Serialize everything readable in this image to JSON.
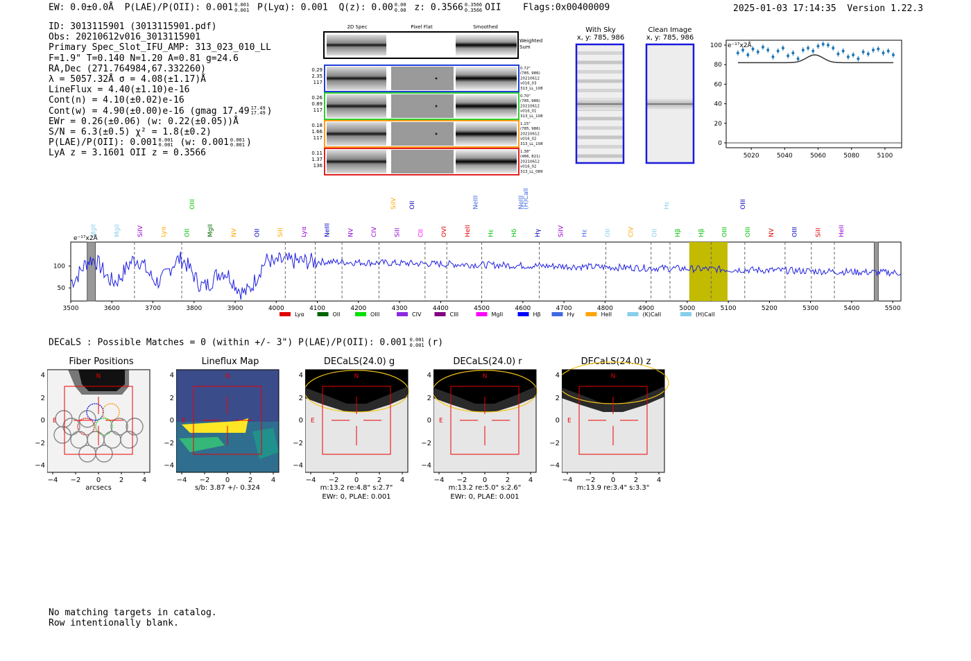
{
  "header": {
    "ew": "EW: 0.0±0.0Å",
    "plae_label": "P(LAE)/P(OII): 0.001",
    "plae_sup": "0.001",
    "plae_sub": "0.001",
    "plya": "P(Lyα): 0.001",
    "qz_label": "Q(z): 0.00",
    "qz_sup": "0.00",
    "qz_sub": "0.00",
    "z_label": "z: 0.3566",
    "z_sup": "0.3566",
    "z_sub": "0.3566",
    "z_line": "OII",
    "flags": "Flags:0x00400009",
    "timestamp": "2025-01-03 17:14:35",
    "version": "Version 1.22.3"
  },
  "info": {
    "id": "ID: 3013115901 (3013115901.pdf)",
    "obs": "Obs: 20210612v016_3013115901",
    "primary": "Primary Spec_Slot_IFU_AMP: 313_023_010_LL",
    "fit": "F=1.9\"  T=0.140  N=1.20  A=0.81  g=24.6",
    "radec": "RA,Dec (271.764984,67.332260)",
    "lambda": "λ = 5057.32Å  σ = 4.08(±1.17)Å",
    "lineflux": "LineFlux = 4.40(±1.10)e-16",
    "contn": "Cont(n) = 4.10(±0.02)e-16",
    "contw": "Cont(w) = 4.90(±0.00)e-16 (gmag 17.49",
    "contw_sup": "17.49",
    "contw_sub": "17.49",
    "contw_end": ")",
    "ewr": "EWr = 0.26(±0.06) (w: 0.22(±0.05))Å",
    "sn": "S/N = 6.3(±0.5)  χ² = 1.8(±0.2)",
    "plae": "P(LAE)/P(OII): 0.001",
    "plae_sup": "0.001",
    "plae_sub": "0.001",
    "plae_w": " (w: 0.001",
    "plae_w_sup": "0.001",
    "plae_w_sub": "0.001",
    "plae_end": ")",
    "lya": "LyA z = 3.1601  OII z = 0.3566"
  },
  "cutouts": {
    "col_2d": "2D Spec",
    "col_flat": "Pixel Flat",
    "col_smooth": "Smoothed",
    "weighted": "Weighted",
    "weighted2": "Sum",
    "rows": [
      {
        "left": [
          "0.29",
          "2.35",
          "117"
        ],
        "right": [
          "0.72\"",
          "(785, 986)",
          "20210612",
          "v016_03",
          "313_LL_108"
        ],
        "color": "#1f3fd6"
      },
      {
        "left": [
          "0.26",
          "0.89",
          "117"
        ],
        "right": [
          "0.70\"",
          "(785, 986)",
          "20210612",
          "v016_01",
          "313_LL_108"
        ],
        "color": "#2ecc2e"
      },
      {
        "left": [
          "0.18",
          "1.66",
          "117"
        ],
        "right": [
          "1.15\"",
          "(785, 986)",
          "20210612",
          "v016_02",
          "313_LL_108"
        ],
        "color": "#ff9a1a"
      },
      {
        "left": [
          "0.11",
          "1.37",
          "136"
        ],
        "right": [
          "1.38\"",
          "(486, 821)",
          "20210612",
          "v016_02",
          "313_LL_089"
        ],
        "color": "#e02020"
      }
    ]
  },
  "sky": {
    "with_sky": "With Sky",
    "with_sky_xy": "x, y: 785, 986",
    "clean": "Clean Image",
    "clean_xy": "x, y: 785, 986"
  },
  "zoom_chart": {
    "ylabel": "e⁻¹⁷x2Å",
    "yticks": [
      "0",
      "20",
      "40",
      "60",
      "80",
      "100"
    ],
    "xticks": [
      "5020",
      "5040",
      "5060",
      "5080",
      "5100"
    ]
  },
  "spectrum": {
    "ylabel": "e⁻¹⁷x2Å",
    "yticks": [
      "50",
      "100"
    ],
    "xticks": [
      "3500",
      "3600",
      "3700",
      "3800",
      "3900",
      "4000",
      "4100",
      "4200",
      "4300",
      "4400",
      "4500",
      "4600",
      "4700",
      "4800",
      "4900",
      "5000",
      "5100",
      "5200",
      "5300",
      "5400",
      "5500"
    ],
    "legend": [
      {
        "label": "Lyα",
        "color": "#e00000"
      },
      {
        "label": "OII",
        "color": "#006400"
      },
      {
        "label": "OIII",
        "color": "#00e000"
      },
      {
        "label": "CIV",
        "color": "#8a2be2"
      },
      {
        "label": "CIII",
        "color": "#800080"
      },
      {
        "label": "MgII",
        "color": "#ff00ff"
      },
      {
        "label": "Hβ",
        "color": "#0000ff"
      },
      {
        "label": "Hγ",
        "color": "#4169e1"
      },
      {
        "label": "HeII",
        "color": "#ffa500"
      },
      {
        "label": "(K)CaII",
        "color": "#87ceeb"
      },
      {
        "label": "(H)CaII",
        "color": "#87ceeb"
      }
    ],
    "lines_row1": [
      {
        "label": "MgII",
        "color": "#87ceeb"
      },
      {
        "label": "MgII",
        "color": "#87ceeb"
      },
      {
        "label": "SiIV",
        "color": "#9400d3"
      },
      {
        "label": "Lyα",
        "color": "#ffa500"
      },
      {
        "label": "OII",
        "color": "#00c000"
      },
      {
        "label": "MgII",
        "color": "#006400"
      },
      {
        "label": "NV",
        "color": "#ffa500"
      },
      {
        "label": "OII",
        "color": "#0000c0"
      },
      {
        "label": "SiII",
        "color": "#ffa500"
      },
      {
        "label": "Lyα",
        "color": "#9400d3"
      },
      {
        "label": "NeIII",
        "color": "#0000c0"
      },
      {
        "label": "NV",
        "color": "#9400d3"
      },
      {
        "label": "CIV",
        "color": "#9400d3"
      },
      {
        "label": "SiII",
        "color": "#9400d3"
      },
      {
        "label": "CII",
        "color": "#ff00ff"
      },
      {
        "label": "OVI",
        "color": "#e00000"
      },
      {
        "label": "HeII",
        "color": "#e00000"
      },
      {
        "label": "Hε",
        "color": "#00c000"
      },
      {
        "label": "Hδ",
        "color": "#00c000"
      },
      {
        "label": "Hγ",
        "color": "#0000c0"
      },
      {
        "label": "SiIV",
        "color": "#9400d3"
      },
      {
        "label": "Hε",
        "color": "#4169e1"
      },
      {
        "label": "OII",
        "color": "#87ceeb"
      },
      {
        "label": "CIV",
        "color": "#ffa500"
      },
      {
        "label": "OII",
        "color": "#87ceeb"
      },
      {
        "label": "Hβ",
        "color": "#00c000"
      },
      {
        "label": "Hβ",
        "color": "#00c000"
      },
      {
        "label": "OIII",
        "color": "#00c000"
      },
      {
        "label": "OIII",
        "color": "#00c000"
      },
      {
        "label": "NV",
        "color": "#e00000"
      },
      {
        "label": "OIII",
        "color": "#0000c0"
      },
      {
        "label": "SiII",
        "color": "#e00000"
      },
      {
        "label": "HeII",
        "color": "#9400d3"
      }
    ],
    "lines_row2": [
      {
        "label": "OIII",
        "color": "#00c000"
      },
      {
        "label": "SiIV",
        "color": "#ffa500"
      },
      {
        "label": "OII",
        "color": "#0000c0"
      },
      {
        "label": "NeIII",
        "color": "#4169e1"
      },
      {
        "label": "NeIII",
        "color": "#4169e1"
      },
      {
        "label": "(H)CaII",
        "color": "#4169e1"
      },
      {
        "label": "Hε",
        "color": "#87ceeb"
      },
      {
        "label": "OIII",
        "color": "#0000c0"
      }
    ]
  },
  "decals": {
    "summary": "DECaLS : Possible Matches = 0 (within +/- 3\")  P(LAE)/P(OII): 0.001",
    "summary_sup": "0.001",
    "summary_sub": "0.001",
    "summary_end": "(r)"
  },
  "panels": [
    {
      "title": "Fiber Positions",
      "cap1": "arcsecs",
      "cap2": ""
    },
    {
      "title": "Lineflux Map",
      "cap1": "s/b: 3.87 +/- 0.324",
      "cap2": ""
    },
    {
      "title": "DECaLS(24.0) g",
      "cap1": "m:13.2  re:4.8\"  s:2.7\"",
      "cap2": "EWr: 0, PLAE: 0.001"
    },
    {
      "title": "DECaLS(24.0) r",
      "cap1": "m:13.2  re:5.0\"  s:2.6\"",
      "cap2": "EWr: 0, PLAE: 0.001"
    },
    {
      "title": "DECaLS(24.0) z",
      "cap1": "m:13.9  re:3.4\"  s:3.3\"",
      "cap2": ""
    }
  ],
  "panel_axis": {
    "xticks": [
      "−4",
      "−2",
      "0",
      "2",
      "4"
    ],
    "yticks": [
      "4",
      "2",
      "0",
      "−2",
      "−4"
    ],
    "n": "N",
    "e": "E"
  },
  "footer": {
    "line1": "No matching targets in catalog.",
    "line2": "Row intentionally blank."
  },
  "chart_data": [
    {
      "type": "scatter",
      "title": "",
      "ylabel": "e⁻¹⁷x2Å",
      "ylim": [
        -5,
        105
      ],
      "xlim": [
        5005,
        5110
      ],
      "x": [
        5012,
        5015,
        5018,
        5021,
        5024,
        5027,
        5030,
        5033,
        5036,
        5039,
        5042,
        5045,
        5048,
        5051,
        5054,
        5057,
        5060,
        5063,
        5066,
        5069,
        5072,
        5075,
        5078,
        5081,
        5084,
        5087,
        5090,
        5093,
        5096,
        5099,
        5102,
        5105
      ],
      "y": [
        92,
        95,
        90,
        96,
        93,
        98,
        95,
        88,
        94,
        97,
        89,
        92,
        86,
        95,
        97,
        94,
        99,
        101,
        100,
        97,
        91,
        94,
        88,
        90,
        86,
        93,
        91,
        95,
        96,
        92,
        94,
        90
      ],
      "model_baseline": 82,
      "model_peak": 88,
      "model_center": 5058
    },
    {
      "type": "line",
      "title": "",
      "xlabel": "",
      "ylabel": "e⁻¹⁷x2Å",
      "xlim": [
        3500,
        5520
      ],
      "ylim": [
        20,
        155
      ],
      "highlight": [
        5005,
        5098
      ],
      "dashed_lines": [
        3655,
        3770,
        4022,
        4095,
        4160,
        4250,
        4362,
        4415,
        4500,
        4640,
        4802,
        4912,
        4958,
        5058,
        5140,
        5238,
        5302,
        5358
      ]
    }
  ]
}
